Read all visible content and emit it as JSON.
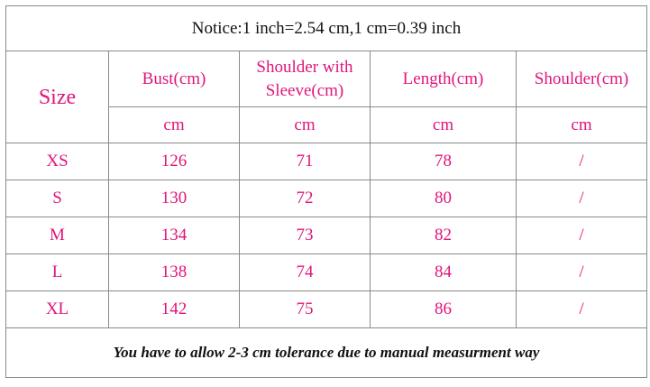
{
  "notice": "Notice:1 inch=2.54 cm,1 cm=0.39 inch",
  "table": {
    "size_header": "Size",
    "columns": [
      "Bust(cm)",
      "Shoulder with Sleeve(cm)",
      "Length(cm)",
      "Shoulder(cm)"
    ],
    "units": [
      "cm",
      "cm",
      "cm",
      "cm"
    ],
    "rows": [
      [
        "XS",
        126,
        71,
        78,
        "/"
      ],
      [
        "S",
        130,
        72,
        80,
        "/"
      ],
      [
        "M",
        134,
        73,
        82,
        "/"
      ],
      [
        "L",
        138,
        74,
        84,
        "/"
      ],
      [
        "XL",
        142,
        75,
        86,
        "/"
      ]
    ]
  },
  "footer": "You have to allow 2-3 cm tolerance due to manual measurment way"
}
